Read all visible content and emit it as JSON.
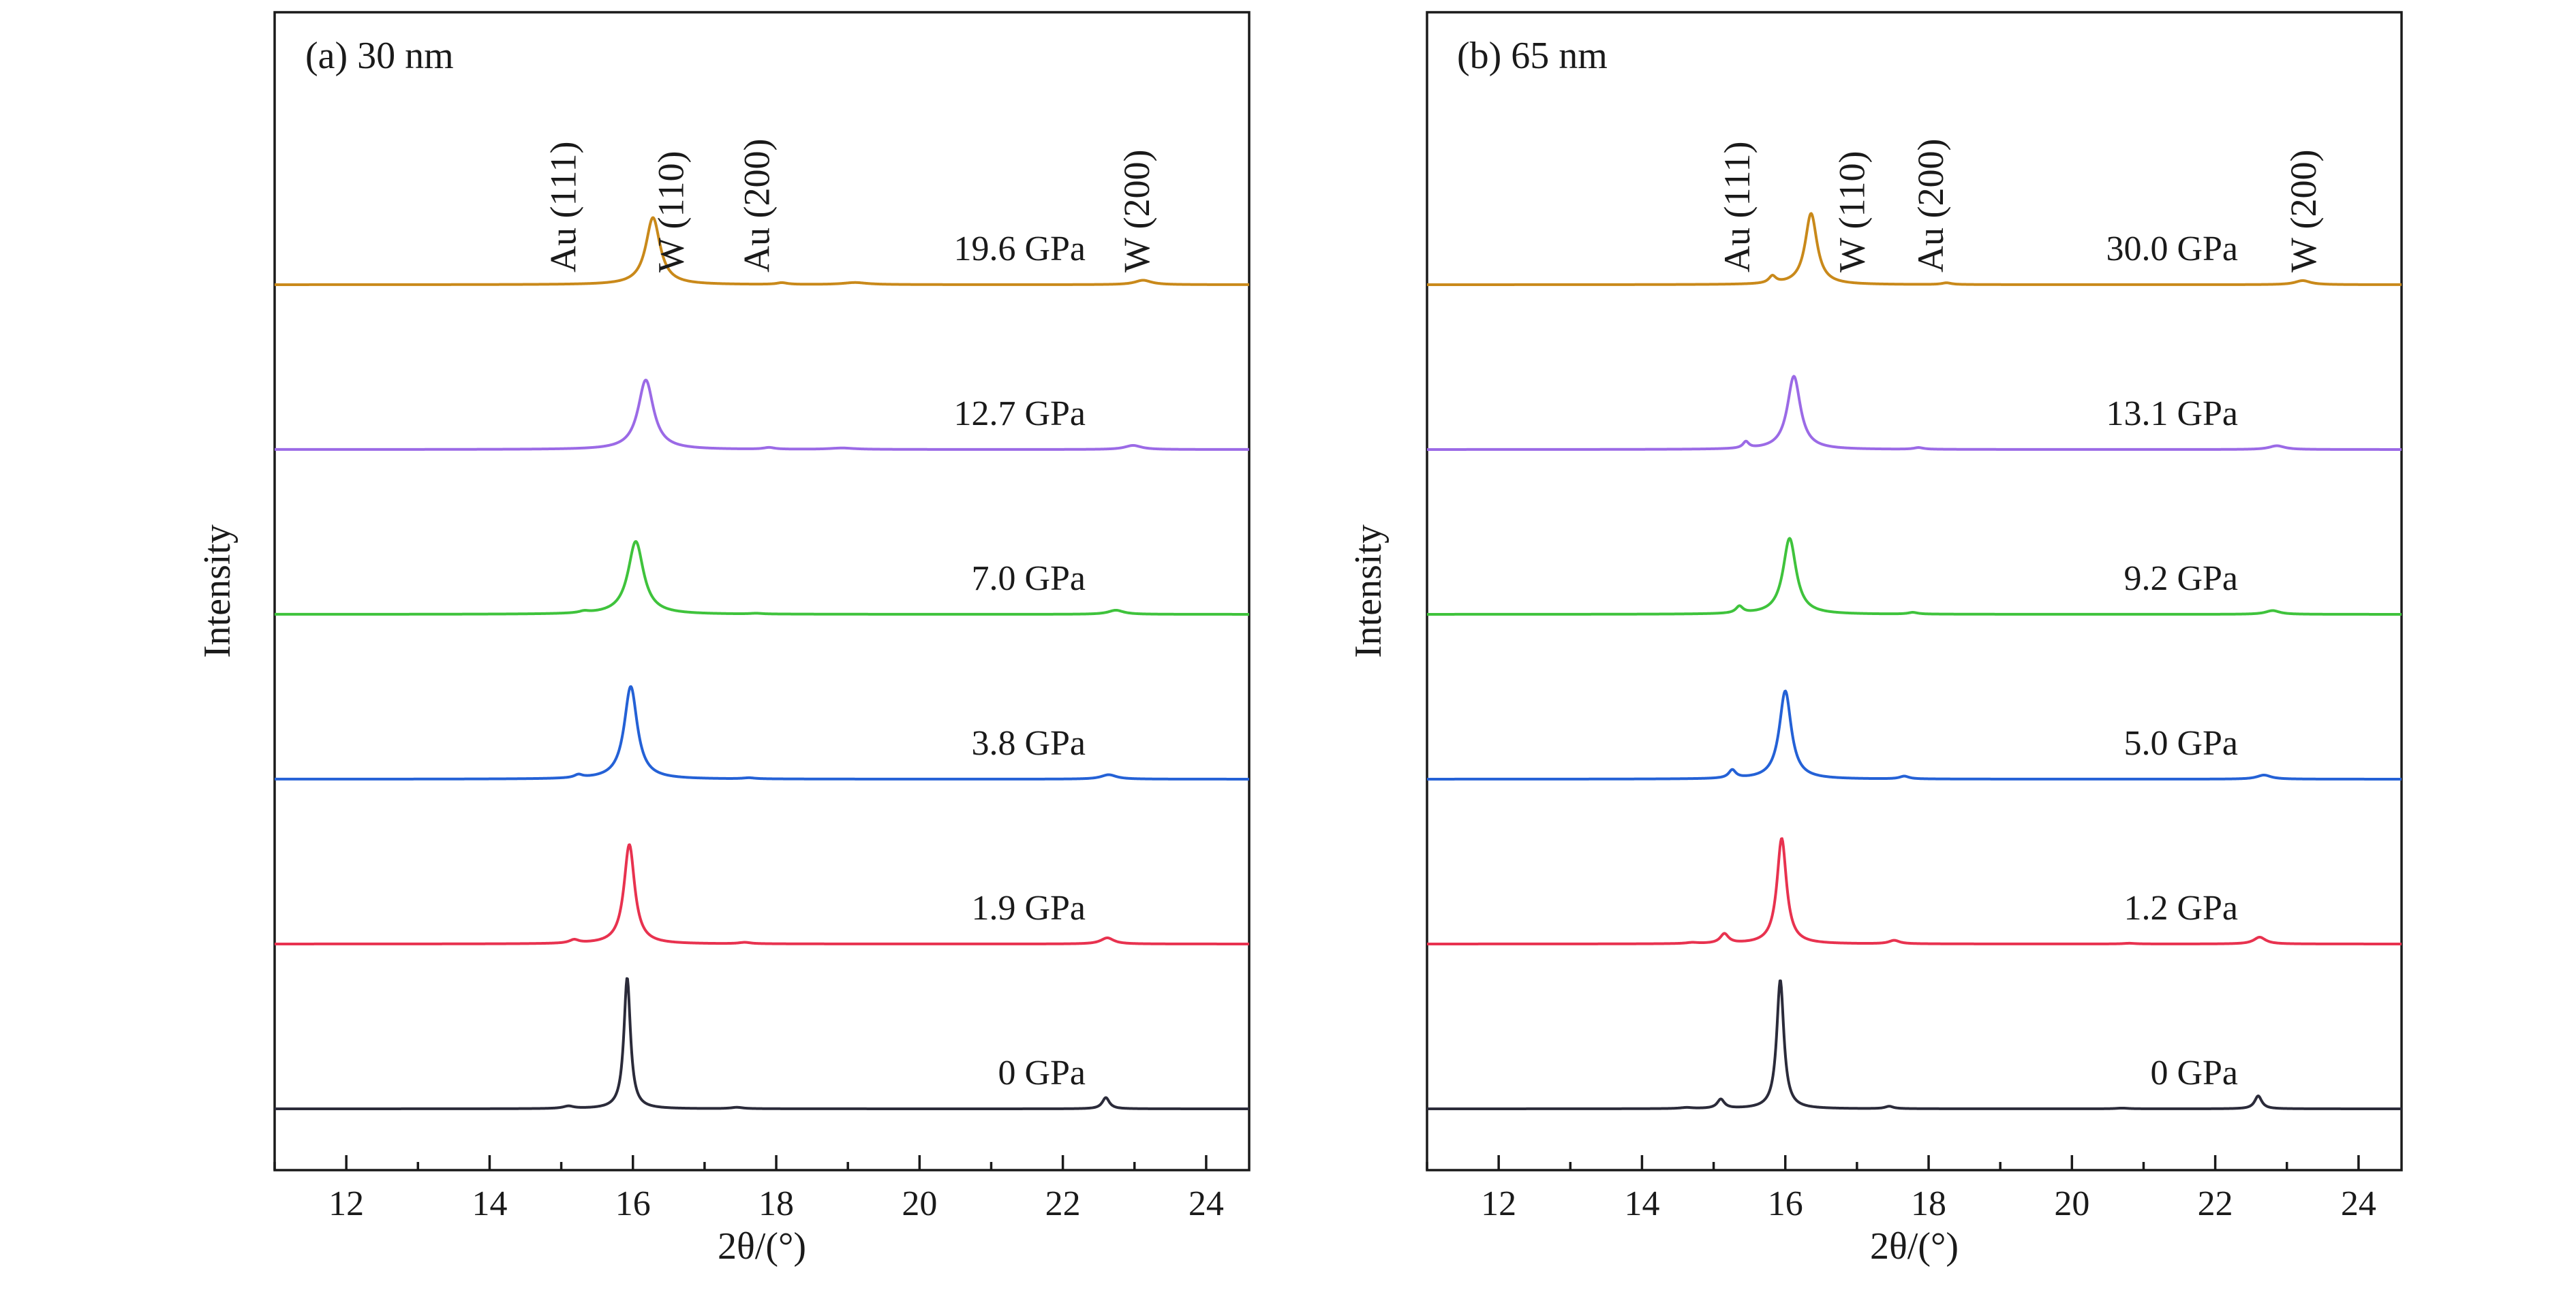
{
  "chart_data": [
    {
      "type": "line",
      "title": "(a) 30 nm",
      "xlabel": "2θ/(°)",
      "ylabel": "Intensity",
      "xlim": [
        11,
        24.6
      ],
      "xticks": [
        12,
        14,
        16,
        18,
        20,
        22,
        24
      ],
      "yticks": "none",
      "legend": "none",
      "peak_labels": [
        {
          "text": "Au (111)",
          "x": 15.2
        },
        {
          "text": "W (110)",
          "x": 16.7
        },
        {
          "text": "Au (200)",
          "x": 17.9
        },
        {
          "text": "W (200)",
          "x": 23.2
        }
      ],
      "series": [
        {
          "name": "0 GPa",
          "color": "#2b2b3a",
          "baseline": 0,
          "background": 0,
          "peaks": [
            [
              15.1,
              0.07,
              0.09
            ],
            [
              15.92,
              3.85,
              0.055
            ],
            [
              17.45,
              0.04,
              0.1
            ],
            [
              22.6,
              0.33,
              0.06
            ]
          ]
        },
        {
          "name": "1.9 GPa",
          "color": "#e8324f",
          "baseline": 1,
          "background": 0,
          "peaks": [
            [
              15.18,
              0.1,
              0.08
            ],
            [
              15.95,
              2.92,
              0.09
            ],
            [
              17.56,
              0.04,
              0.1
            ],
            [
              22.62,
              0.18,
              0.11
            ]
          ]
        },
        {
          "name": "3.8 GPa",
          "color": "#2461d6",
          "baseline": 2,
          "background": 0,
          "peaks": [
            [
              15.24,
              0.09,
              0.07
            ],
            [
              15.97,
              2.72,
              0.11
            ],
            [
              17.62,
              0.03,
              0.1
            ],
            [
              22.64,
              0.13,
              0.13
            ]
          ]
        },
        {
          "name": "7.0 GPa",
          "color": "#3fc33c",
          "baseline": 3,
          "background": 0,
          "peaks": [
            [
              15.32,
              0.05,
              0.08
            ],
            [
              16.04,
              2.14,
              0.13
            ],
            [
              17.72,
              0.02,
              0.1
            ],
            [
              22.74,
              0.12,
              0.13
            ]
          ]
        },
        {
          "name": "12.7 GPa",
          "color": "#9b6ae6",
          "baseline": 4,
          "background": 0,
          "peaks": [
            [
              16.18,
              2.04,
              0.13
            ],
            [
              17.9,
              0.05,
              0.09
            ],
            [
              18.92,
              0.04,
              0.2
            ],
            [
              22.98,
              0.12,
              0.14
            ]
          ]
        },
        {
          "name": "19.6 GPa",
          "color": "#c9891a",
          "baseline": 5,
          "background": 0,
          "peaks": [
            [
              16.28,
              1.97,
              0.12
            ],
            [
              18.08,
              0.05,
              0.09
            ],
            [
              19.1,
              0.06,
              0.2
            ],
            [
              23.12,
              0.13,
              0.14
            ]
          ]
        }
      ]
    },
    {
      "type": "line",
      "title": "(b) 65 nm",
      "xlabel": "2θ/(°)",
      "ylabel": "Intensity",
      "xlim": [
        11,
        24.6
      ],
      "xticks": [
        12,
        14,
        16,
        18,
        20,
        22,
        24
      ],
      "yticks": "none",
      "legend": "none",
      "peak_labels": [
        {
          "text": "Au (111)",
          "x": 15.5
        },
        {
          "text": "W (110)",
          "x": 17.1
        },
        {
          "text": "Au (200)",
          "x": 18.2
        },
        {
          "text": "W (200)",
          "x": 23.4
        }
      ],
      "series": [
        {
          "name": "0 GPa",
          "color": "#2b2b3a",
          "baseline": 0,
          "background": 0,
          "peaks": [
            [
              14.62,
              0.03,
              0.1
            ],
            [
              15.1,
              0.27,
              0.06
            ],
            [
              15.93,
              3.78,
              0.06
            ],
            [
              17.45,
              0.07,
              0.07
            ],
            [
              20.7,
              0.02,
              0.1
            ],
            [
              22.6,
              0.38,
              0.06
            ]
          ]
        },
        {
          "name": "1.2 GPa",
          "color": "#e8324f",
          "baseline": 1,
          "background": 0,
          "peaks": [
            [
              14.7,
              0.03,
              0.1
            ],
            [
              15.15,
              0.28,
              0.07
            ],
            [
              15.95,
              3.1,
              0.08
            ],
            [
              17.52,
              0.1,
              0.09
            ],
            [
              20.8,
              0.02,
              0.1
            ],
            [
              22.62,
              0.2,
              0.1
            ]
          ]
        },
        {
          "name": "5.0 GPa",
          "color": "#2461d6",
          "baseline": 2,
          "background": 0,
          "peaks": [
            [
              15.26,
              0.24,
              0.06
            ],
            [
              16.0,
              2.59,
              0.1
            ],
            [
              17.66,
              0.08,
              0.08
            ],
            [
              22.68,
              0.12,
              0.12
            ]
          ]
        },
        {
          "name": "9.2 GPa",
          "color": "#3fc33c",
          "baseline": 3,
          "background": 0,
          "peaks": [
            [
              15.36,
              0.2,
              0.06
            ],
            [
              16.06,
              2.23,
              0.11
            ],
            [
              17.78,
              0.05,
              0.08
            ],
            [
              22.8,
              0.11,
              0.12
            ]
          ]
        },
        {
          "name": "13.1 GPa",
          "color": "#9b6ae6",
          "baseline": 4,
          "background": 0,
          "peaks": [
            [
              15.45,
              0.19,
              0.05
            ],
            [
              16.12,
              2.15,
              0.11
            ],
            [
              17.86,
              0.05,
              0.08
            ],
            [
              22.86,
              0.11,
              0.13
            ]
          ]
        },
        {
          "name": "30.0 GPa",
          "color": "#c9891a",
          "baseline": 5,
          "background": 0,
          "peaks": [
            [
              15.82,
              0.21,
              0.06
            ],
            [
              16.36,
              2.09,
              0.1
            ],
            [
              18.25,
              0.05,
              0.08
            ],
            [
              23.22,
              0.12,
              0.13
            ]
          ]
        }
      ]
    }
  ]
}
